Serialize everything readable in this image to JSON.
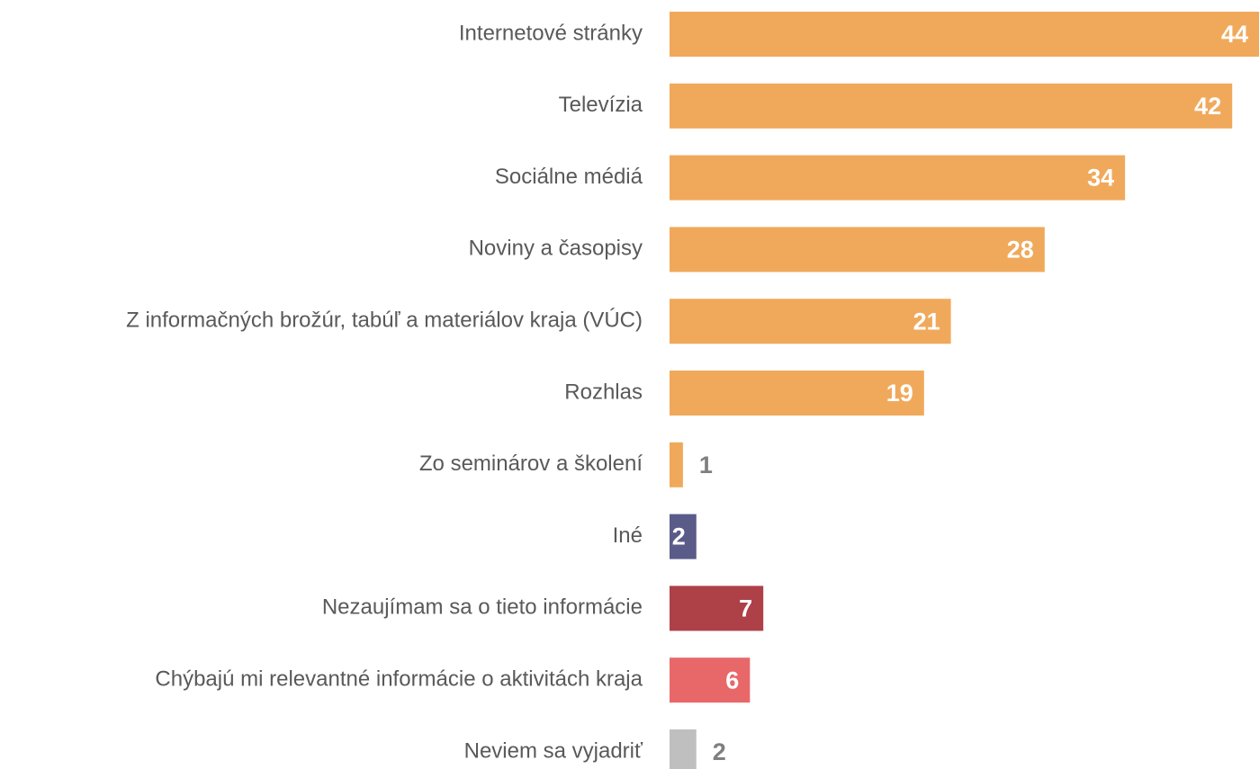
{
  "chart_data": {
    "type": "barh",
    "categories": [
      "Internetové stránky",
      "Televízia",
      "Sociálne médiá",
      "Noviny a časopisy",
      "Z informačných brožúr, tabúľ a materiálov kraja (VÚC)",
      "Rozhlas",
      "Zo seminárov a školení",
      "Iné",
      "Nezaujímam sa o tieto informácie",
      "Chýbajú mi relevantné informácie o aktivitách kraja",
      "Neviem sa vyjadriť"
    ],
    "values": [
      44,
      42,
      34,
      28,
      21,
      19,
      1,
      2,
      7,
      6,
      2
    ],
    "colors": [
      "#f0a95b",
      "#f0a95b",
      "#f0a95b",
      "#f0a95b",
      "#f0a95b",
      "#f0a95b",
      "#f0a95b",
      "#5b5b8a",
      "#ae4048",
      "#e8686a",
      "#bfbfbf"
    ],
    "xlim": [
      0,
      44
    ]
  }
}
